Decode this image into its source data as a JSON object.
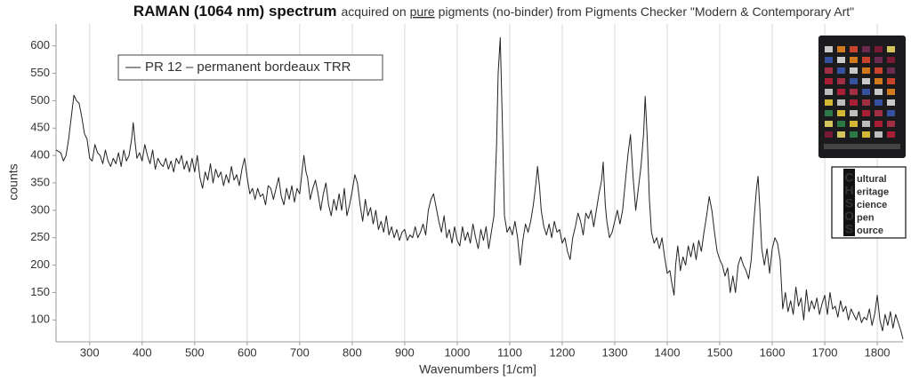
{
  "chart_data": {
    "type": "line",
    "title": "RAMAN (1064 nm) spectrum",
    "subtitle_parts": [
      "acquired on",
      "pure",
      "pigments (no-binder) from Pigments Checker \"Modern & Contemporary Art\""
    ],
    "x_label": "Wavenumbers [1/cm]",
    "y_label": "counts",
    "xlim": [
      236,
      1849
    ],
    "ylim": [
      60,
      640
    ],
    "xticks": [
      300,
      400,
      500,
      600,
      700,
      800,
      900,
      1000,
      1100,
      1200,
      1300,
      1400,
      1500,
      1600,
      1700,
      1800
    ],
    "yticks": [
      100,
      150,
      200,
      250,
      300,
      350,
      400,
      450,
      500,
      550,
      600
    ],
    "grid": "x",
    "legend": "top-left",
    "logo": [
      {
        "initial": "C",
        "rest": "ultural"
      },
      {
        "initial": "H",
        "rest": "eritage"
      },
      {
        "initial": "S",
        "rest": "cience"
      },
      {
        "initial": "O",
        "rest": "pen"
      },
      {
        "initial": "S",
        "rest": "ource"
      }
    ],
    "x": [
      236,
      245,
      250,
      255,
      260,
      265,
      270,
      275,
      280,
      285,
      290,
      295,
      300,
      305,
      310,
      315,
      320,
      325,
      330,
      335,
      340,
      345,
      350,
      355,
      360,
      365,
      370,
      375,
      380,
      383,
      387,
      390,
      395,
      400,
      405,
      410,
      415,
      420,
      425,
      430,
      435,
      440,
      445,
      450,
      455,
      460,
      465,
      470,
      475,
      480,
      485,
      490,
      495,
      500,
      505,
      510,
      515,
      520,
      525,
      530,
      535,
      540,
      545,
      550,
      555,
      560,
      565,
      570,
      575,
      580,
      585,
      590,
      595,
      600,
      605,
      610,
      615,
      620,
      625,
      630,
      635,
      640,
      645,
      650,
      655,
      660,
      665,
      670,
      675,
      680,
      685,
      690,
      695,
      700,
      705,
      708,
      712,
      715,
      720,
      725,
      730,
      735,
      740,
      745,
      750,
      755,
      760,
      765,
      770,
      775,
      780,
      785,
      790,
      795,
      800,
      805,
      810,
      815,
      820,
      825,
      830,
      835,
      840,
      845,
      850,
      855,
      860,
      865,
      870,
      875,
      880,
      885,
      890,
      895,
      900,
      905,
      910,
      915,
      920,
      925,
      930,
      935,
      940,
      945,
      950,
      955,
      960,
      965,
      970,
      975,
      980,
      985,
      990,
      995,
      1000,
      1005,
      1010,
      1015,
      1020,
      1025,
      1030,
      1035,
      1040,
      1045,
      1050,
      1055,
      1060,
      1065,
      1070,
      1075,
      1078,
      1082,
      1086,
      1090,
      1095,
      1100,
      1105,
      1110,
      1115,
      1120,
      1125,
      1130,
      1135,
      1140,
      1145,
      1150,
      1153,
      1157,
      1160,
      1165,
      1170,
      1175,
      1180,
      1185,
      1190,
      1195,
      1200,
      1205,
      1210,
      1215,
      1220,
      1225,
      1230,
      1235,
      1240,
      1245,
      1250,
      1255,
      1260,
      1265,
      1270,
      1275,
      1278,
      1282,
      1285,
      1290,
      1295,
      1300,
      1305,
      1310,
      1315,
      1320,
      1325,
      1330,
      1335,
      1340,
      1345,
      1350,
      1355,
      1358,
      1362,
      1366,
      1370,
      1375,
      1380,
      1385,
      1390,
      1395,
      1400,
      1405,
      1410,
      1413,
      1416,
      1420,
      1425,
      1430,
      1435,
      1440,
      1445,
      1450,
      1455,
      1460,
      1465,
      1470,
      1475,
      1480,
      1485,
      1490,
      1495,
      1500,
      1505,
      1510,
      1515,
      1520,
      1525,
      1530,
      1535,
      1540,
      1545,
      1550,
      1555,
      1560,
      1565,
      1570,
      1573,
      1576,
      1580,
      1585,
      1590,
      1595,
      1600,
      1605,
      1610,
      1615,
      1620,
      1625,
      1630,
      1635,
      1640,
      1645,
      1650,
      1655,
      1660,
      1665,
      1670,
      1675,
      1680,
      1685,
      1690,
      1695,
      1700,
      1705,
      1710,
      1715,
      1720,
      1725,
      1730,
      1735,
      1740,
      1745,
      1750,
      1755,
      1760,
      1765,
      1770,
      1775,
      1780,
      1785,
      1790,
      1795,
      1800,
      1805,
      1810,
      1815,
      1820,
      1825,
      1830,
      1835,
      1840,
      1845,
      1849
    ],
    "series": [
      {
        "name": "PR 12 – permanent bordeaux TRR",
        "color": "#222222",
        "values": [
          410,
          405,
          390,
          400,
          430,
          470,
          510,
          500,
          495,
          470,
          440,
          430,
          395,
          390,
          420,
          405,
          400,
          385,
          410,
          390,
          380,
          395,
          385,
          405,
          380,
          410,
          390,
          400,
          430,
          460,
          420,
          395,
          405,
          390,
          420,
          400,
          385,
          410,
          375,
          395,
          385,
          380,
          395,
          375,
          390,
          370,
          395,
          385,
          400,
          375,
          390,
          370,
          395,
          370,
          400,
          360,
          340,
          370,
          355,
          385,
          350,
          375,
          360,
          370,
          345,
          365,
          350,
          380,
          355,
          365,
          345,
          375,
          395,
          360,
          330,
          340,
          320,
          340,
          325,
          330,
          310,
          345,
          340,
          320,
          340,
          360,
          325,
          310,
          340,
          320,
          345,
          315,
          340,
          330,
          375,
          400,
          370,
          360,
          320,
          340,
          355,
          330,
          300,
          330,
          350,
          310,
          290,
          320,
          300,
          330,
          300,
          340,
          290,
          310,
          335,
          365,
          350,
          310,
          280,
          320,
          290,
          305,
          275,
          300,
          265,
          280,
          260,
          290,
          255,
          270,
          250,
          265,
          245,
          260,
          265,
          245,
          255,
          250,
          270,
          250,
          260,
          275,
          255,
          300,
          320,
          330,
          305,
          280,
          260,
          290,
          250,
          265,
          240,
          270,
          245,
          235,
          270,
          245,
          260,
          240,
          275,
          250,
          230,
          265,
          245,
          270,
          230,
          260,
          290,
          420,
          550,
          615,
          460,
          290,
          260,
          270,
          255,
          280,
          250,
          200,
          245,
          275,
          260,
          280,
          310,
          350,
          380,
          340,
          300,
          270,
          255,
          275,
          250,
          280,
          260,
          265,
          240,
          250,
          225,
          210,
          250,
          270,
          295,
          280,
          255,
          295,
          285,
          300,
          270,
          300,
          330,
          355,
          388,
          310,
          280,
          250,
          260,
          280,
          300,
          275,
          300,
          350,
          400,
          438,
          360,
          300,
          340,
          380,
          440,
          508,
          430,
          320,
          260,
          240,
          250,
          230,
          250,
          215,
          185,
          190,
          160,
          145,
          200,
          235,
          190,
          215,
          200,
          235,
          215,
          240,
          210,
          245,
          225,
          260,
          290,
          325,
          300,
          260,
          225,
          210,
          200,
          180,
          195,
          150,
          180,
          150,
          200,
          215,
          200,
          190,
          175,
          210,
          280,
          340,
          362,
          310,
          230,
          200,
          230,
          185,
          230,
          250,
          240,
          210,
          120,
          150,
          115,
          135,
          110,
          160,
          125,
          140,
          100,
          155,
          115,
          135,
          120,
          140,
          110,
          130,
          145,
          110,
          150,
          120,
          125,
          105,
          135,
          115,
          125,
          100,
          120,
          110,
          100,
          115,
          95,
          105,
          100,
          120,
          90,
          110,
          145,
          100,
          80,
          110,
          90,
          115,
          85,
          110,
          95,
          80,
          65
        ]
      }
    ]
  }
}
